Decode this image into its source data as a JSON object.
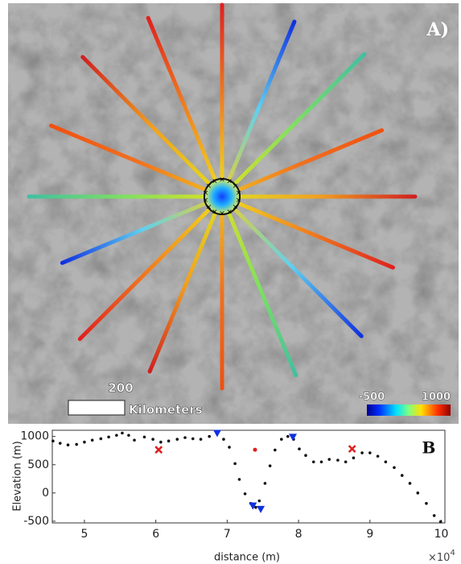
{
  "panel_a": {
    "label": "A)",
    "scale_bar": {
      "length": 200,
      "unit": "Kilometers"
    },
    "colorbar": {
      "ticks": [
        -500,
        1000
      ]
    }
  },
  "chart_data": {
    "type": "scatter",
    "label": "B",
    "xlabel": "distance (m)",
    "ylabel": "Elevation (m)",
    "x_multiplier": {
      "base": "×10",
      "exponent": "4"
    },
    "xlim": [
      45500,
      100500
    ],
    "ylim": [
      -530,
      1110
    ],
    "xticks": [
      {
        "value": 50000,
        "label": "5"
      },
      {
        "value": 60000,
        "label": "6"
      },
      {
        "value": 70000,
        "label": "7"
      },
      {
        "value": 80000,
        "label": "8"
      },
      {
        "value": 90000,
        "label": "9"
      },
      {
        "value": 100000,
        "label": "10"
      }
    ],
    "yticks": [
      -500,
      0,
      500,
      1000
    ],
    "series": [
      {
        "color": "#111111",
        "marker": "dot",
        "x": [
          45600,
          46600,
          47700,
          48900,
          50000,
          51100,
          52300,
          53400,
          54500,
          55300,
          56200,
          57000,
          58400,
          59600,
          60700,
          61800,
          63000,
          64100,
          65200,
          66300,
          67500,
          68600,
          69500,
          70300,
          71100,
          71700,
          72500,
          73300,
          74000,
          74500,
          75300,
          76000,
          76700,
          77600,
          78500,
          79300,
          80100,
          81000,
          82100,
          83200,
          84300,
          85500,
          86600,
          87700,
          88900,
          90000,
          91100,
          92200,
          93400,
          94500,
          95600,
          96700,
          97900,
          99000,
          99900
        ],
        "values": [
          920,
          880,
          850,
          860,
          900,
          935,
          960,
          990,
          1020,
          1060,
          1020,
          935,
          990,
          950,
          900,
          920,
          950,
          980,
          960,
          950,
          1000,
          1060,
          950,
          810,
          520,
          240,
          -15,
          -185,
          -255,
          -140,
          170,
          480,
          760,
          950,
          1000,
          950,
          780,
          665,
          550,
          550,
          595,
          580,
          550,
          620,
          710,
          710,
          650,
          550,
          450,
          310,
          170,
          0,
          -185,
          -400,
          -510
        ]
      },
      {
        "color": "#e02020",
        "marker": "x",
        "x": [
          60400,
          87500
        ],
        "values": [
          765,
          780
        ]
      },
      {
        "color": "#e02020",
        "marker": "dot",
        "x": [
          73900
        ],
        "values": [
          765
        ]
      },
      {
        "color": "#1030e0",
        "marker": "triangle",
        "x": [
          68600,
          79200,
          73600,
          74700
        ],
        "values": [
          1060,
          990,
          -225,
          -285
        ]
      }
    ]
  }
}
